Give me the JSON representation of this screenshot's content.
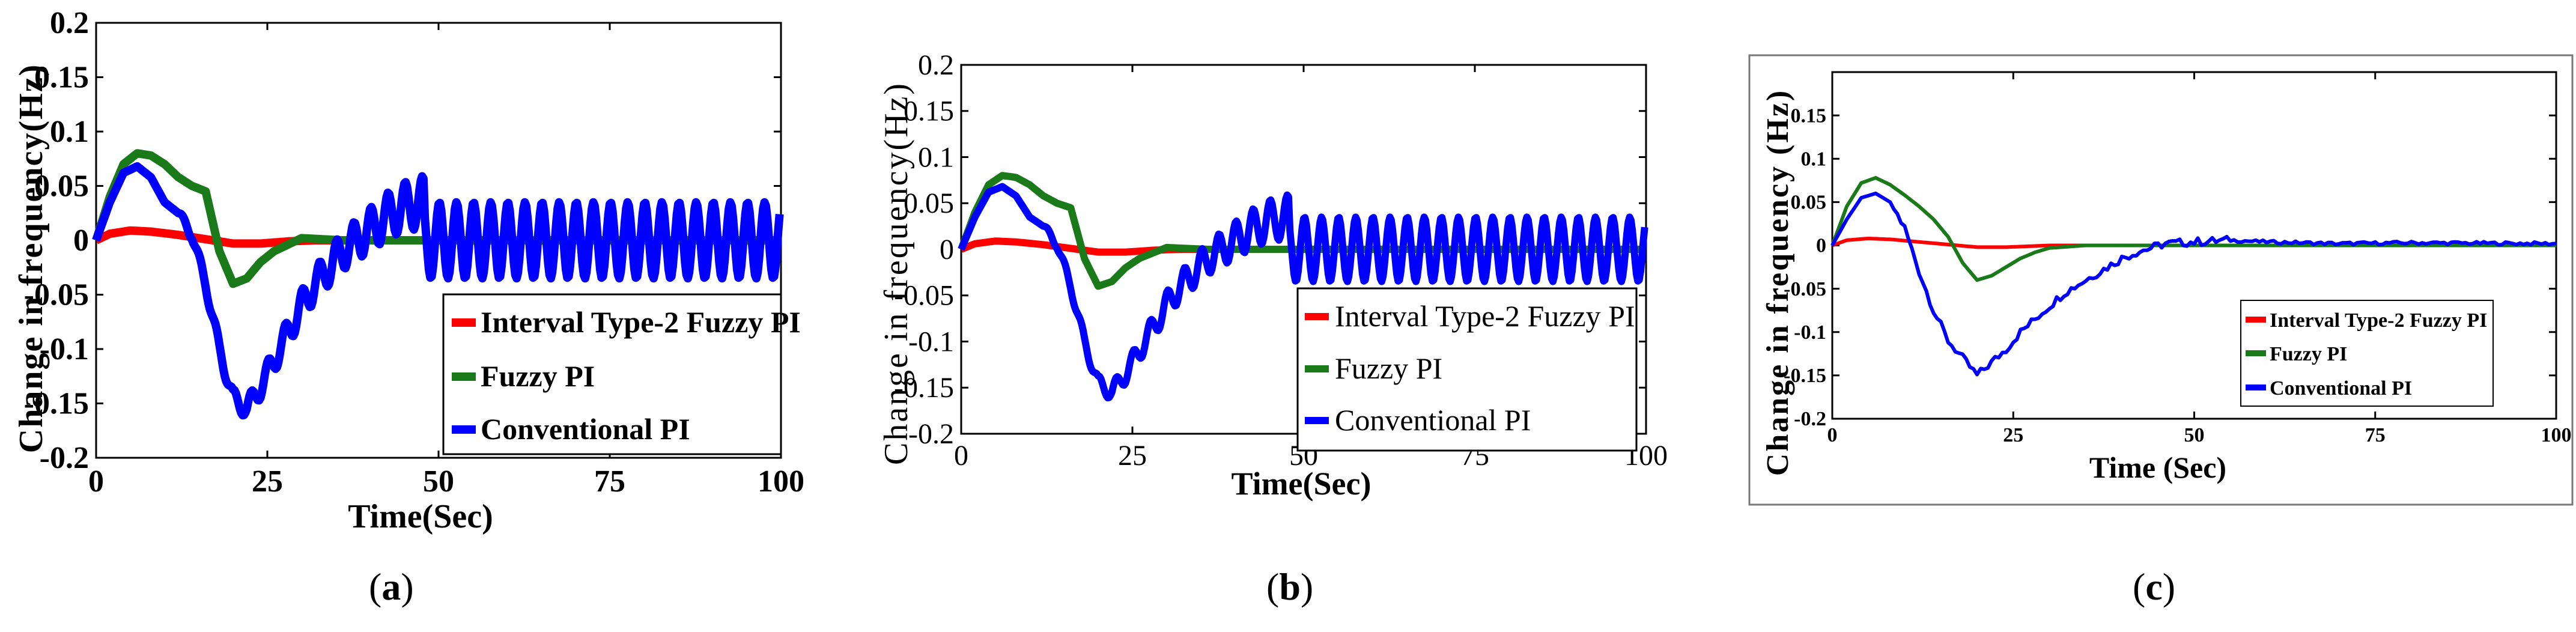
{
  "colors": {
    "interval_type2": "#ff0000",
    "fuzzy": "#1a7a1a",
    "conventional": "#0000ff",
    "axis": "#000000"
  },
  "chart_data": [
    {
      "type": "line",
      "panel": "a",
      "title": "",
      "xlabel": "Time(Sec)",
      "ylabel": "Change in frequency(Hz)",
      "xlim": [
        0,
        100
      ],
      "ylim": [
        -0.2,
        0.2
      ],
      "xticks": [
        0,
        25,
        50,
        75,
        100
      ],
      "yticks": [
        0.2,
        0.15,
        0.1,
        0.05,
        0,
        -0.05,
        -0.1,
        -0.15,
        -0.2
      ],
      "ytick_labels": [
        "0.2",
        "0.15",
        "0.1",
        "0.05",
        "0",
        "-0.05",
        "-0.1",
        "-0.15",
        "-0.2"
      ],
      "legend_position": "lower-right",
      "series": [
        {
          "name": "Interval Type-2 Fuzzy PI",
          "color_key": "interval_type2",
          "x": [
            0,
            2,
            5,
            8,
            12,
            16,
            20,
            24,
            28,
            32,
            40,
            100
          ],
          "y": [
            0,
            0.006,
            0.009,
            0.008,
            0.005,
            0.001,
            -0.003,
            -0.003,
            -0.001,
            0,
            0,
            0
          ]
        },
        {
          "name": "Fuzzy PI",
          "color_key": "fuzzy",
          "x": [
            0,
            2,
            4,
            6,
            8,
            10,
            12,
            14,
            16,
            18,
            20,
            22,
            24,
            26,
            28,
            30,
            33,
            36,
            40,
            100
          ],
          "y": [
            0,
            0.04,
            0.07,
            0.08,
            0.078,
            0.07,
            0.058,
            0.05,
            0.045,
            -0.01,
            -0.04,
            -0.035,
            -0.02,
            -0.01,
            -0.004,
            0.002,
            0.001,
            0,
            0,
            0
          ]
        },
        {
          "name": "Conventional PI",
          "color_key": "conventional",
          "x": [
            0,
            2,
            4,
            6,
            8,
            10,
            12,
            14,
            16,
            18,
            20,
            22,
            24,
            26,
            28,
            30,
            32,
            34,
            36,
            38,
            40,
            42,
            44,
            46,
            48
          ],
          "y": [
            0,
            0.035,
            0.062,
            0.068,
            0.058,
            0.035,
            0.025,
            0.005,
            -0.04,
            -0.1,
            -0.145,
            -0.155,
            -0.135,
            -0.11,
            -0.085,
            -0.06,
            -0.04,
            -0.025,
            -0.01,
            0,
            0.01,
            0.02,
            0.028,
            0.033,
            0.035
          ],
          "oscillation": {
            "amplitude_start": 0.005,
            "amplitude_end": 0.035,
            "period": 2.5,
            "start": 12,
            "full_from": 48,
            "end": 100
          }
        }
      ]
    },
    {
      "type": "line",
      "panel": "b",
      "title": "",
      "xlabel": "Time(Sec)",
      "ylabel": "Change in frequency(Hz)",
      "xlim": [
        0,
        100
      ],
      "ylim": [
        -0.2,
        0.2
      ],
      "xticks": [
        0,
        25,
        50,
        75,
        100
      ],
      "yticks": [
        0.2,
        0.15,
        0.1,
        0.05,
        0,
        -0.05,
        -0.1,
        -0.15,
        -0.2
      ],
      "ytick_labels": [
        "0.2",
        "0.15",
        "0.1",
        "0.05",
        "0",
        "-0.05",
        "-0.1",
        "-0.15",
        "-0.2"
      ],
      "legend_position": "lower-right",
      "series": [
        {
          "name": "Interval Type-2 Fuzzy PI",
          "color_key": "interval_type2",
          "x": [
            0,
            2,
            5,
            8,
            12,
            16,
            20,
            24,
            28,
            32,
            40,
            100
          ],
          "y": [
            0,
            0.006,
            0.009,
            0.008,
            0.005,
            0.001,
            -0.003,
            -0.003,
            -0.001,
            0,
            0,
            0
          ]
        },
        {
          "name": "Fuzzy PI",
          "color_key": "fuzzy",
          "x": [
            0,
            2,
            4,
            6,
            8,
            10,
            12,
            14,
            16,
            18,
            20,
            22,
            24,
            26,
            28,
            30,
            33,
            36,
            40,
            100
          ],
          "y": [
            0,
            0.04,
            0.07,
            0.08,
            0.078,
            0.07,
            0.058,
            0.05,
            0.045,
            -0.01,
            -0.04,
            -0.035,
            -0.02,
            -0.01,
            -0.004,
            0.002,
            0.001,
            0,
            0,
            0
          ]
        },
        {
          "name": "Conventional PI",
          "color_key": "conventional",
          "x": [
            0,
            2,
            4,
            6,
            8,
            10,
            12,
            14,
            16,
            18,
            20,
            22,
            24,
            26,
            28,
            30,
            32,
            34,
            36,
            38,
            40,
            42,
            44,
            46,
            48
          ],
          "y": [
            0,
            0.035,
            0.062,
            0.068,
            0.058,
            0.035,
            0.025,
            0.005,
            -0.04,
            -0.1,
            -0.145,
            -0.155,
            -0.135,
            -0.11,
            -0.085,
            -0.06,
            -0.04,
            -0.025,
            -0.01,
            0,
            0.01,
            0.02,
            0.028,
            0.033,
            0.035
          ],
          "oscillation": {
            "amplitude_start": 0.005,
            "amplitude_end": 0.035,
            "period": 2.5,
            "start": 12,
            "full_from": 48,
            "end": 100
          }
        }
      ]
    },
    {
      "type": "line",
      "panel": "c",
      "title": "",
      "xlabel": "Time (Sec)",
      "ylabel": "Change in frequency (Hz)",
      "xlim": [
        0,
        100
      ],
      "ylim": [
        -0.2,
        0.2
      ],
      "xticks": [
        0,
        25,
        50,
        75,
        100
      ],
      "yticks": [
        0.15,
        0.1,
        0.05,
        0,
        -0.05,
        -0.1,
        -0.15,
        -0.2
      ],
      "ytick_labels": [
        "0.15",
        "0.1",
        "0.05",
        "0",
        "-0.05",
        "-0.1",
        "-0.15",
        "-0.2"
      ],
      "legend_position": "lower-right",
      "series": [
        {
          "name": "Interval Type-2 Fuzzy PI",
          "color_key": "interval_type2",
          "x": [
            0,
            2,
            5,
            8,
            12,
            16,
            20,
            24,
            30,
            40,
            100
          ],
          "y": [
            0,
            0.006,
            0.008,
            0.007,
            0.004,
            0.001,
            -0.002,
            -0.002,
            0,
            0,
            0
          ]
        },
        {
          "name": "Fuzzy PI",
          "color_key": "fuzzy",
          "x": [
            0,
            2,
            4,
            6,
            8,
            10,
            12,
            14,
            16,
            18,
            20,
            22,
            24,
            26,
            28,
            30,
            35,
            40,
            100
          ],
          "y": [
            0,
            0.045,
            0.072,
            0.078,
            0.07,
            0.058,
            0.045,
            0.03,
            0.01,
            -0.02,
            -0.04,
            -0.035,
            -0.025,
            -0.015,
            -0.008,
            -0.003,
            0,
            0,
            0
          ]
        },
        {
          "name": "Conventional PI",
          "color_key": "conventional",
          "x": [
            0,
            2,
            4,
            6,
            8,
            10,
            12,
            14,
            16,
            18,
            20,
            22,
            24,
            26,
            28,
            30,
            32,
            34,
            36,
            38,
            40,
            42,
            44,
            46,
            50,
            55,
            60,
            70,
            80,
            100
          ],
          "y": [
            0,
            0.03,
            0.055,
            0.06,
            0.05,
            0.02,
            -0.03,
            -0.075,
            -0.11,
            -0.13,
            -0.15,
            -0.135,
            -0.12,
            -0.1,
            -0.085,
            -0.07,
            -0.055,
            -0.045,
            -0.035,
            -0.025,
            -0.015,
            -0.008,
            -0.003,
            0.002,
            0.004,
            0.006,
            0.004,
            0.002,
            0.003,
            0.002
          ],
          "noise": 0.006
        }
      ]
    }
  ],
  "captions": [
    {
      "open": "(",
      "letter": "a",
      "close": ")"
    },
    {
      "open": "(",
      "letter": "b",
      "close": ")"
    },
    {
      "open": "(",
      "letter": "c",
      "close": ")"
    }
  ]
}
